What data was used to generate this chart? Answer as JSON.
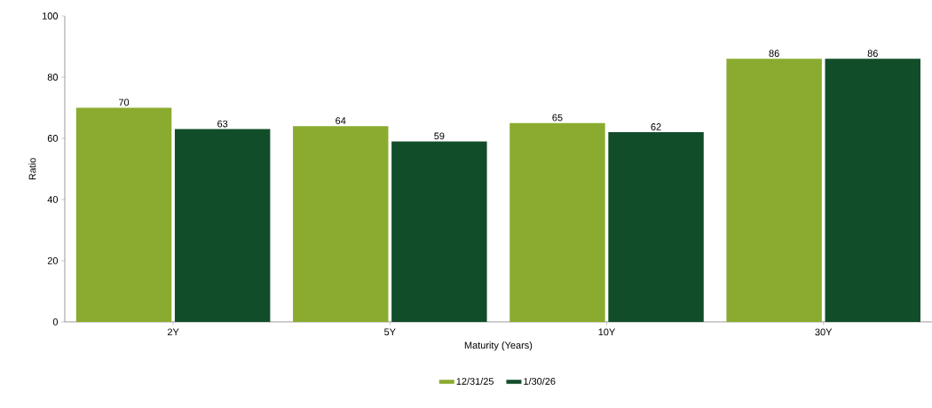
{
  "chart_data": {
    "type": "bar",
    "xlabel": "Maturity (Years)",
    "ylabel": "Ratio",
    "categories": [
      "2Y",
      "5Y",
      "10Y",
      "30Y"
    ],
    "series": [
      {
        "name": "12/31/25",
        "color": "#8aab2f",
        "values": [
          70,
          64,
          65,
          86
        ]
      },
      {
        "name": "1/30/26",
        "color": "#124d2a",
        "values": [
          63,
          59,
          62,
          86
        ]
      }
    ],
    "ylim": [
      0,
      100
    ],
    "yticks": [
      0,
      20,
      40,
      60,
      80,
      100
    ],
    "data_labels": true,
    "legend": "bottom"
  }
}
